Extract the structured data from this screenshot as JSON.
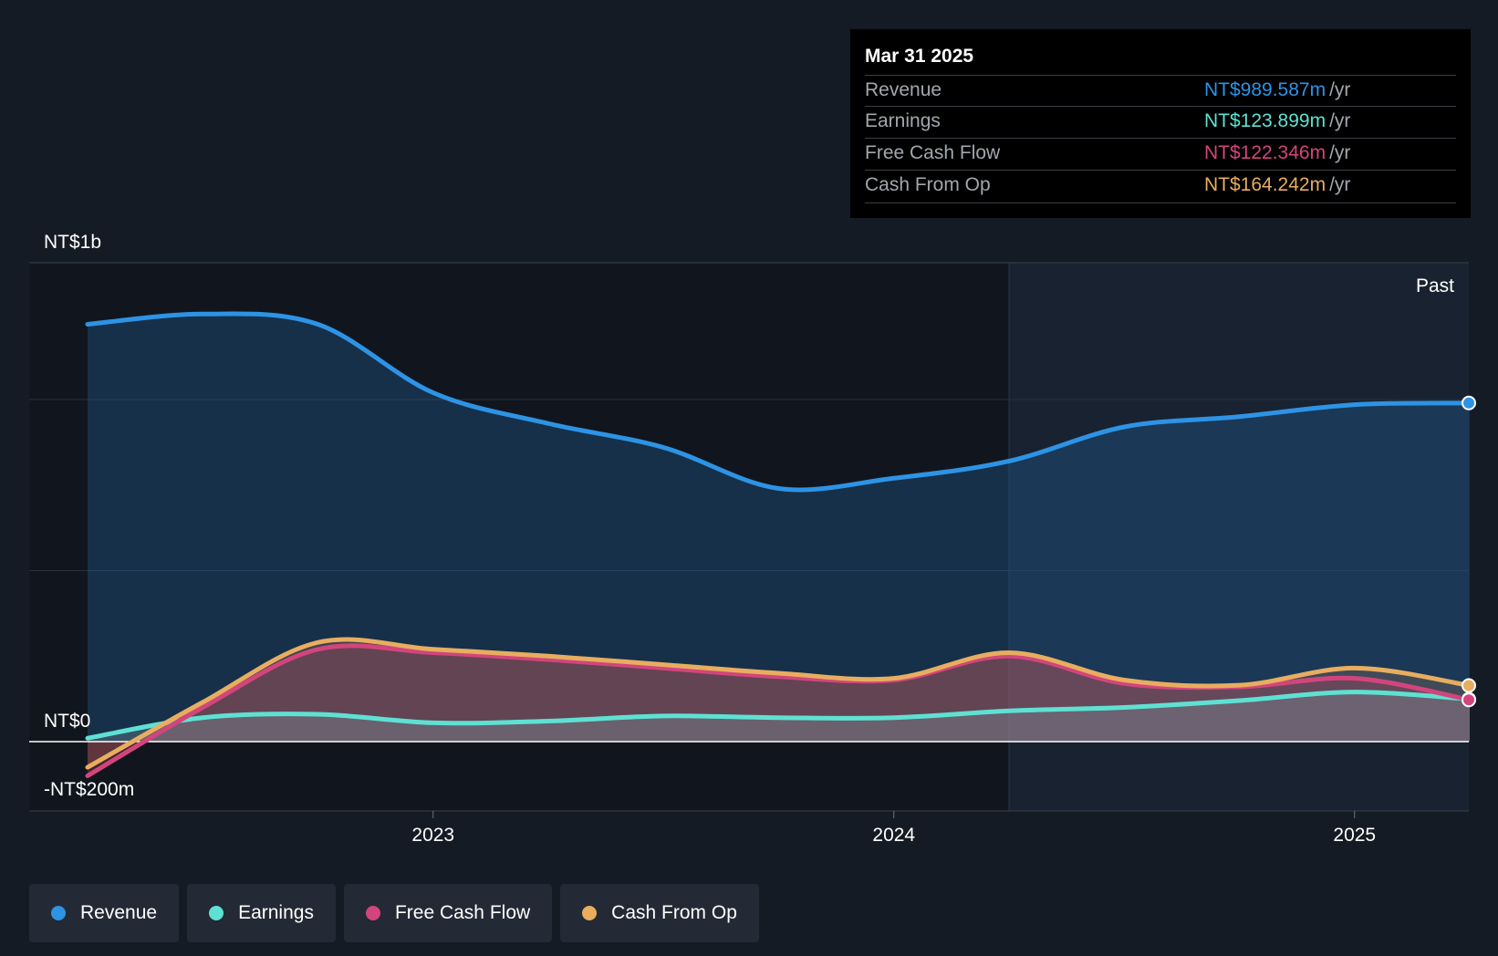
{
  "chart_data": {
    "type": "line",
    "y_axis_labels": {
      "top": "NT$1b",
      "zero": "NT$0",
      "bottom": "-NT$200m"
    },
    "ylim": [
      -200,
      1400
    ],
    "xlim": [
      2022.11,
      2025.25
    ],
    "x_ticks": [
      {
        "value": 2023.0,
        "label": "2023"
      },
      {
        "value": 2024.0,
        "label": "2024"
      },
      {
        "value": 2025.0,
        "label": "2025"
      }
    ],
    "past_label": "Past",
    "forecast_divider_x": 2024.25,
    "series": [
      {
        "name": "Revenue",
        "color": "#2d93e5",
        "points": [
          [
            2022.25,
            1220
          ],
          [
            2022.5,
            1250
          ],
          [
            2022.75,
            1220
          ],
          [
            2023.0,
            1020
          ],
          [
            2023.25,
            930
          ],
          [
            2023.5,
            860
          ],
          [
            2023.75,
            740
          ],
          [
            2024.0,
            770
          ],
          [
            2024.25,
            820
          ],
          [
            2024.5,
            920
          ],
          [
            2024.75,
            950
          ],
          [
            2025.0,
            985
          ],
          [
            2025.25,
            990
          ]
        ]
      },
      {
        "name": "Earnings",
        "color": "#5ee1d3",
        "points": [
          [
            2022.25,
            10
          ],
          [
            2022.5,
            70
          ],
          [
            2022.75,
            80
          ],
          [
            2023.0,
            55
          ],
          [
            2023.25,
            60
          ],
          [
            2023.5,
            75
          ],
          [
            2023.75,
            70
          ],
          [
            2024.0,
            70
          ],
          [
            2024.25,
            90
          ],
          [
            2024.5,
            100
          ],
          [
            2024.75,
            120
          ],
          [
            2025.0,
            145
          ],
          [
            2025.25,
            124
          ]
        ]
      },
      {
        "name": "Free Cash Flow",
        "color": "#d2457c",
        "points": [
          [
            2022.25,
            -100
          ],
          [
            2022.5,
            100
          ],
          [
            2022.75,
            270
          ],
          [
            2023.0,
            260
          ],
          [
            2023.25,
            240
          ],
          [
            2023.5,
            215
          ],
          [
            2023.75,
            190
          ],
          [
            2024.0,
            180
          ],
          [
            2024.25,
            250
          ],
          [
            2024.5,
            170
          ],
          [
            2024.75,
            160
          ],
          [
            2025.0,
            185
          ],
          [
            2025.25,
            122
          ]
        ]
      },
      {
        "name": "Cash From Op",
        "color": "#e8ad5f",
        "points": [
          [
            2022.25,
            -75
          ],
          [
            2022.5,
            115
          ],
          [
            2022.75,
            290
          ],
          [
            2023.0,
            270
          ],
          [
            2023.25,
            250
          ],
          [
            2023.5,
            225
          ],
          [
            2023.75,
            200
          ],
          [
            2024.0,
            185
          ],
          [
            2024.25,
            260
          ],
          [
            2024.5,
            180
          ],
          [
            2024.75,
            165
          ],
          [
            2025.0,
            215
          ],
          [
            2025.25,
            164
          ]
        ]
      }
    ]
  },
  "tooltip": {
    "date": "Mar 31 2025",
    "unit": "/yr",
    "rows": [
      {
        "label": "Revenue",
        "value": "NT$989.587m",
        "color": "#2d93e5"
      },
      {
        "label": "Earnings",
        "value": "NT$123.899m",
        "color": "#5ee1d3"
      },
      {
        "label": "Free Cash Flow",
        "value": "NT$122.346m",
        "color": "#d2457c"
      },
      {
        "label": "Cash From Op",
        "value": "NT$164.242m",
        "color": "#e8ad5f"
      }
    ]
  },
  "legend": [
    {
      "label": "Revenue",
      "color": "#2d93e5"
    },
    {
      "label": "Earnings",
      "color": "#5ee1d3"
    },
    {
      "label": "Free Cash Flow",
      "color": "#d2457c"
    },
    {
      "label": "Cash From Op",
      "color": "#e8ad5f"
    }
  ]
}
